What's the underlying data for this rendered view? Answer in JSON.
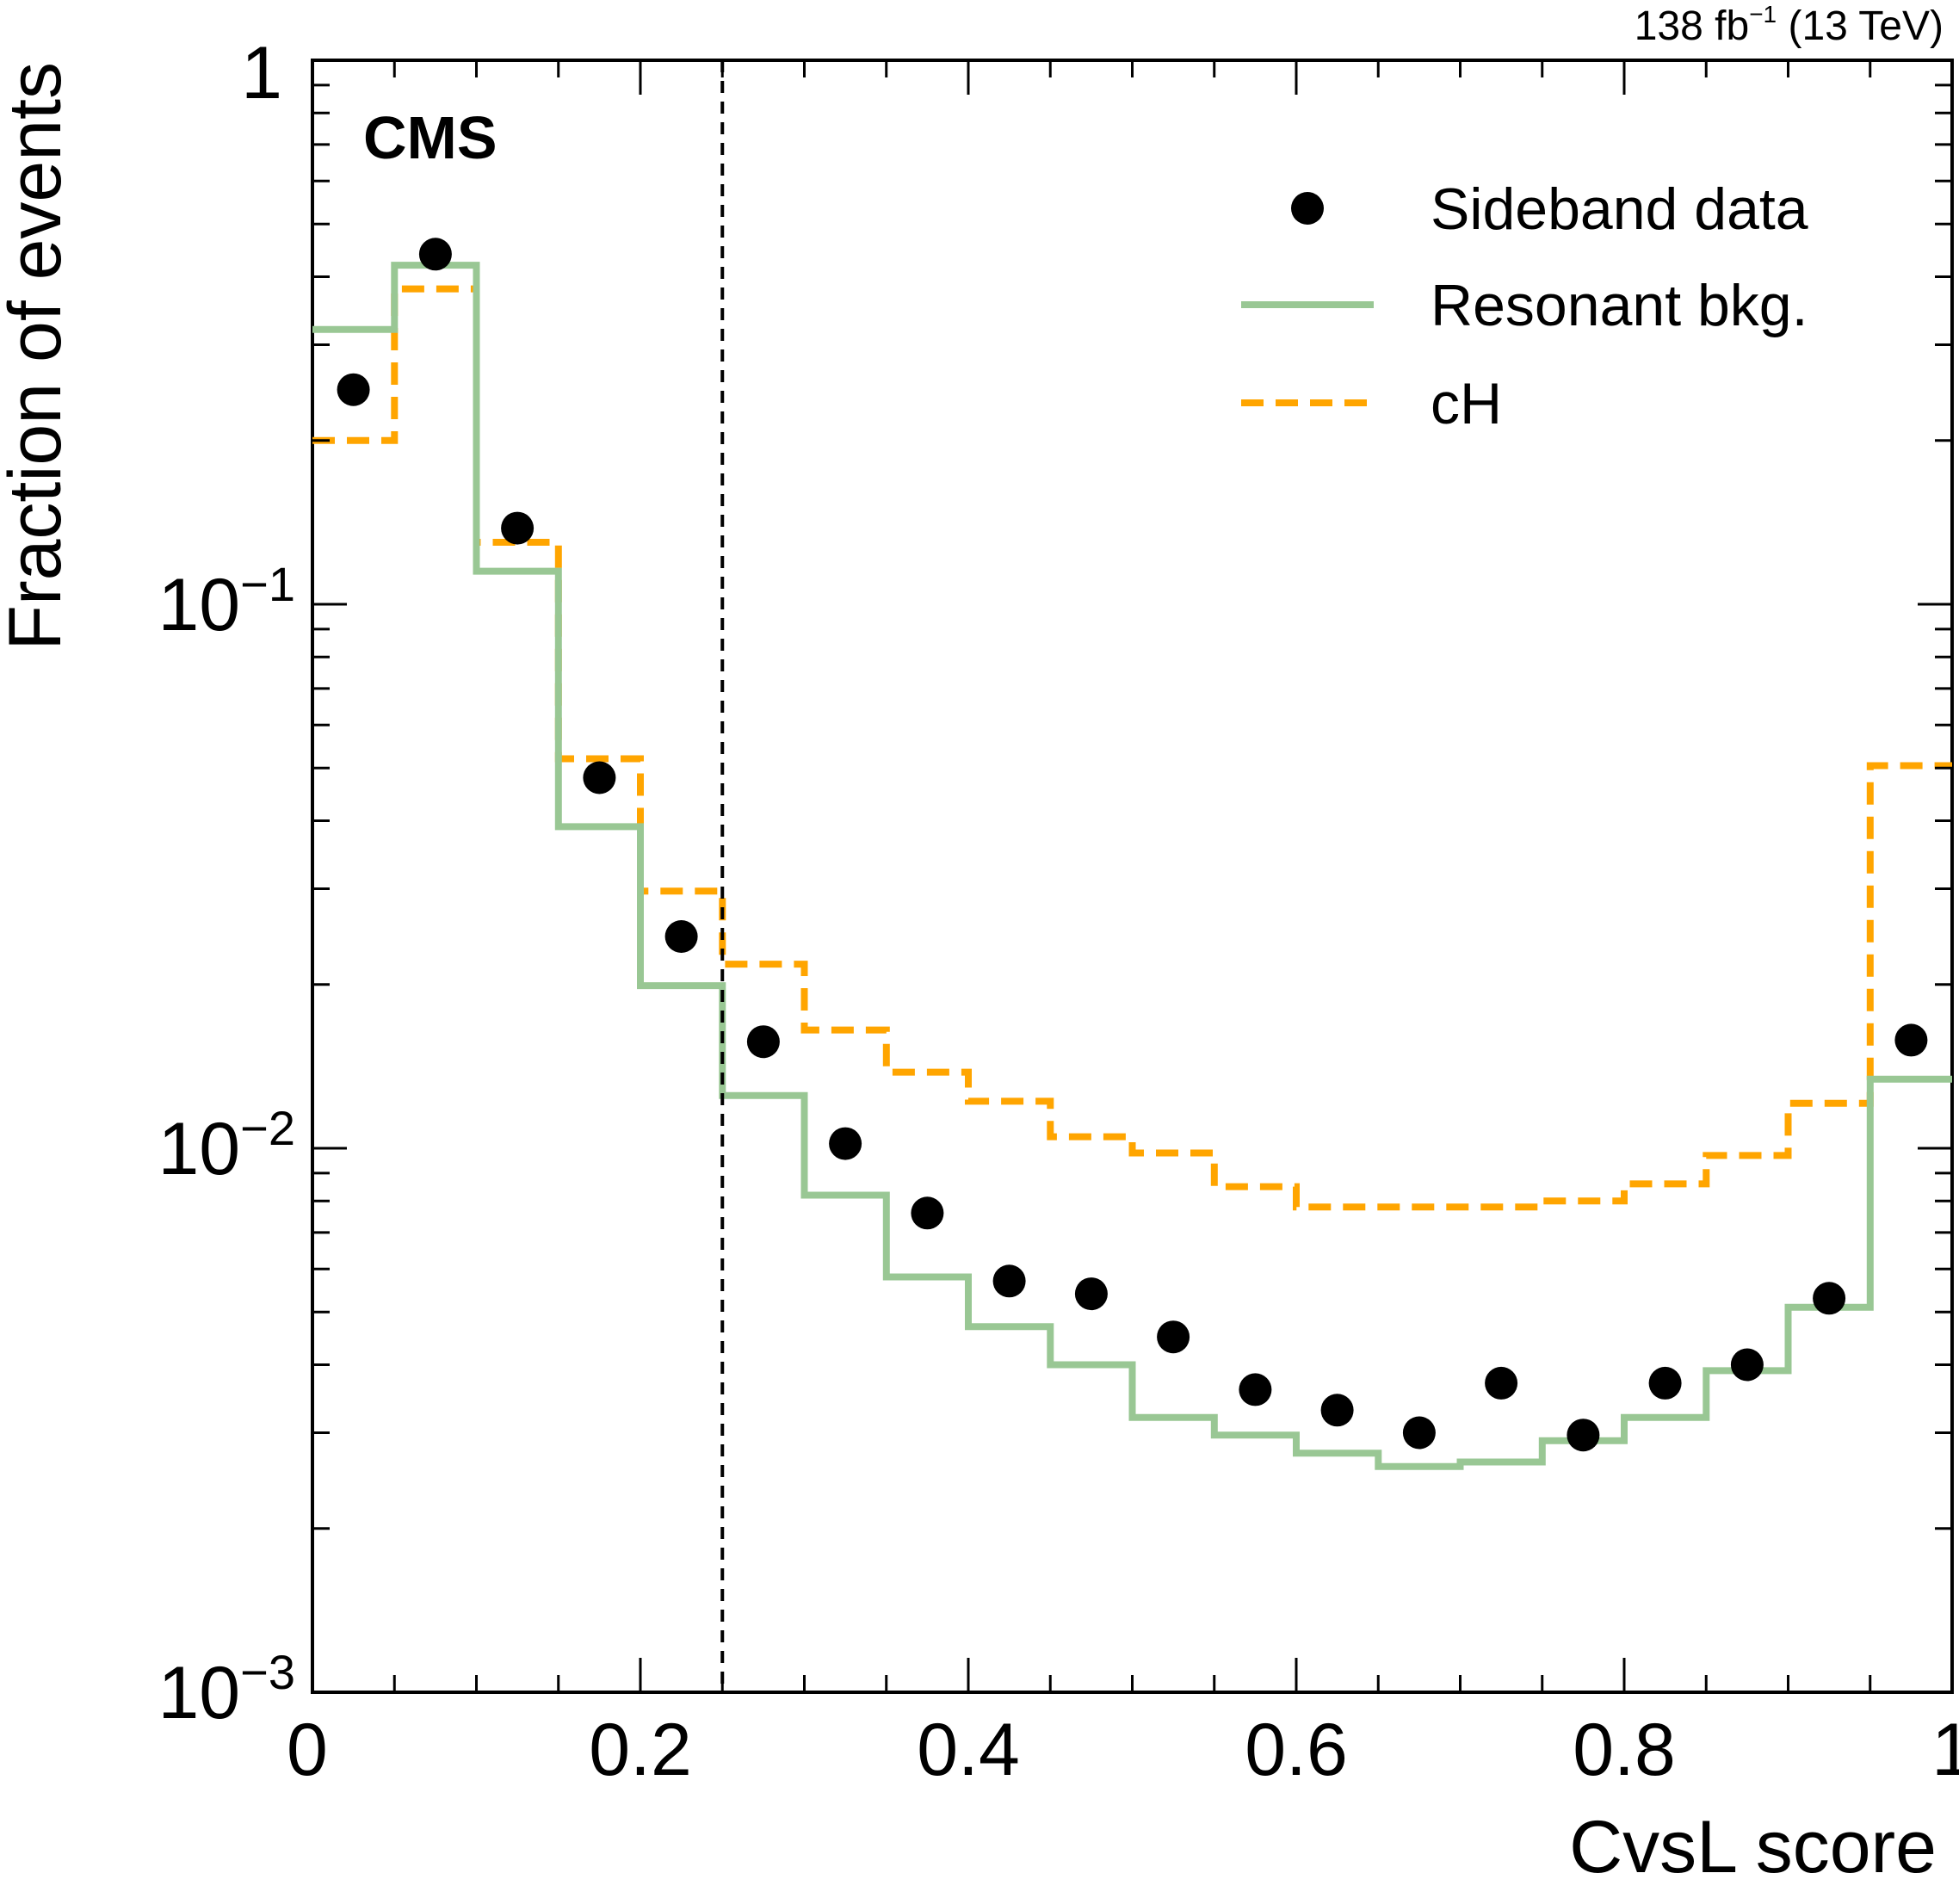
{
  "chart_data": {
    "type": "step+scatter",
    "experiment_label": "CMS",
    "lumi_label": "138 fb",
    "lumi_exponent": "−1",
    "lumi_energy": " (13 TeV)",
    "xlabel": "CvsL score",
    "ylabel": "Fraction of events",
    "xlim": [
      0,
      1
    ],
    "ylim": [
      0.001,
      1
    ],
    "yscale": "log",
    "grid": false,
    "legend_position": "top-right",
    "x_ticks": [
      {
        "value": 0,
        "label": "0"
      },
      {
        "value": 0.2,
        "label": "0.2"
      },
      {
        "value": 0.4,
        "label": "0.4"
      },
      {
        "value": 0.6,
        "label": "0.6"
      },
      {
        "value": 0.8,
        "label": "0.8"
      },
      {
        "value": 1,
        "label": "1"
      }
    ],
    "y_ticks": [
      {
        "value": 1,
        "base": "1",
        "exp": ""
      },
      {
        "value": 0.1,
        "base": "10",
        "exp": "−1"
      },
      {
        "value": 0.01,
        "base": "10",
        "exp": "−2"
      },
      {
        "value": 0.001,
        "base": "10",
        "exp": "−3"
      }
    ],
    "cut_line_x": 0.25,
    "bin_edges": [
      0,
      0.05,
      0.1,
      0.15,
      0.2,
      0.25,
      0.3,
      0.35,
      0.4,
      0.45,
      0.5,
      0.55,
      0.6,
      0.65,
      0.7,
      0.75,
      0.8,
      0.85,
      0.9,
      0.95,
      1
    ],
    "series": [
      {
        "name": "Sideband data",
        "kind": "points",
        "color": "#000000",
        "x": [
          0.025,
          0.075,
          0.125,
          0.175,
          0.225,
          0.275,
          0.325,
          0.375,
          0.425,
          0.475,
          0.525,
          0.575,
          0.625,
          0.675,
          0.725,
          0.775,
          0.825,
          0.875,
          0.925,
          0.975
        ],
        "values": [
          0.248,
          0.44,
          0.138,
          0.048,
          0.0245,
          0.0157,
          0.0102,
          0.0076,
          0.0057,
          0.0054,
          0.0045,
          0.0036,
          0.0033,
          0.003,
          0.0037,
          0.00297,
          0.0037,
          0.004,
          0.0053,
          0.0158
        ]
      },
      {
        "name": "Resonant bkg.",
        "kind": "step",
        "color": "#99c794",
        "style": "solid",
        "values": [
          0.32,
          0.42,
          0.115,
          0.039,
          0.0199,
          0.0125,
          0.0082,
          0.0058,
          0.0047,
          0.004,
          0.0032,
          0.00297,
          0.00275,
          0.0026,
          0.00265,
          0.0029,
          0.0032,
          0.0039,
          0.0051,
          0.0134
        ]
      },
      {
        "name": "cH",
        "kind": "step",
        "color": "#ffa500",
        "style": "dashed",
        "values": [
          0.2,
          0.38,
          0.13,
          0.052,
          0.0297,
          0.0218,
          0.0165,
          0.0138,
          0.0122,
          0.0105,
          0.0098,
          0.0085,
          0.0078,
          0.0078,
          0.0078,
          0.008,
          0.0086,
          0.0097,
          0.0121,
          0.0505
        ]
      }
    ]
  }
}
